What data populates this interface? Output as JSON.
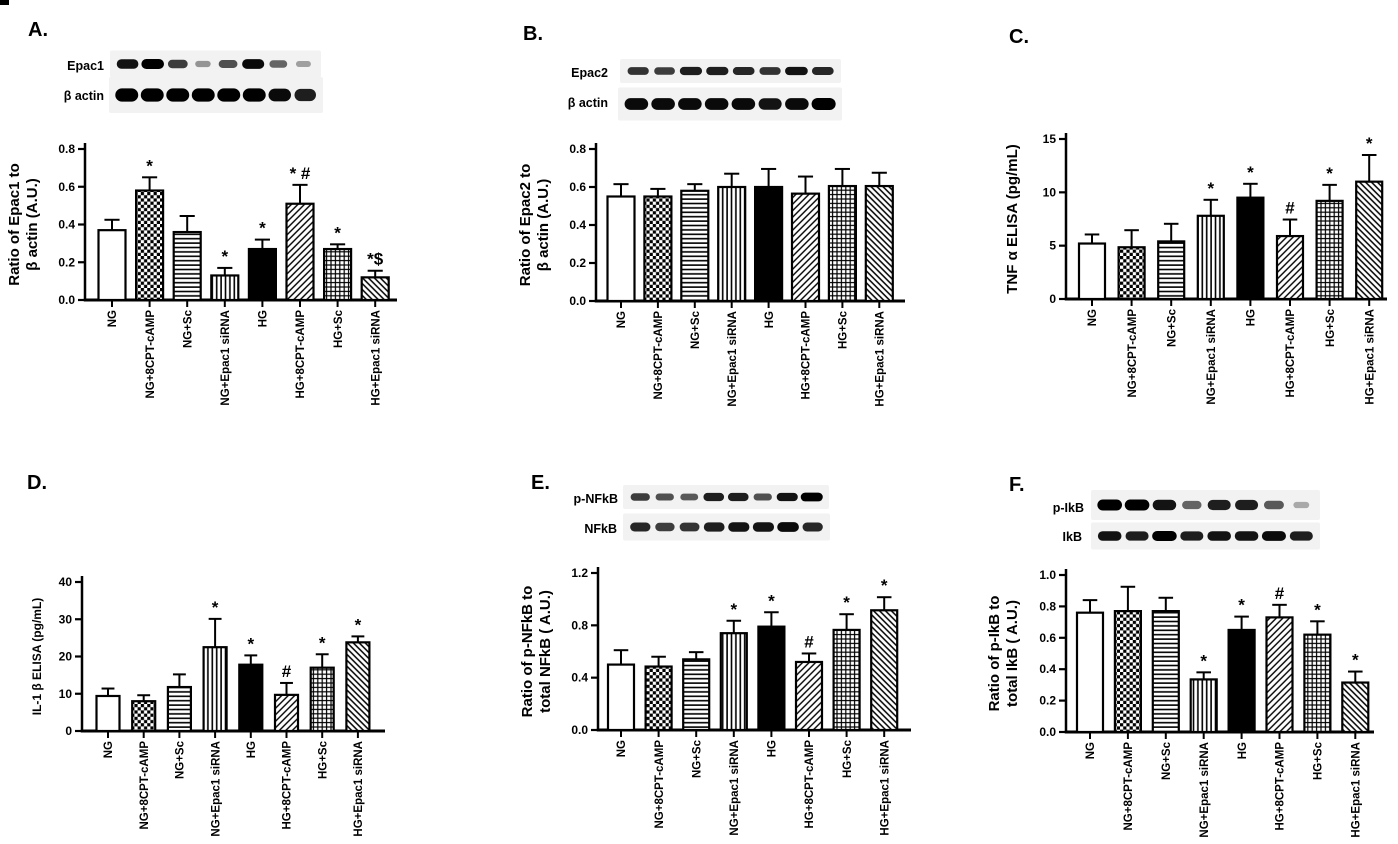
{
  "figure": {
    "colors": {
      "ink": "#000000",
      "background": "#ffffff",
      "blot_backdrop": "#f2f2f2"
    },
    "categories": [
      "NG",
      "NG+8CPT-cAMP",
      "NG+Sc",
      "NG+Epac1 siRNA",
      "HG",
      "HG+8CPT-cAMP",
      "HG+Sc",
      "HG+Epac1 siRNA"
    ],
    "bar_patterns": [
      "open",
      "checkerboard",
      "horizontal-lines",
      "vertical-lines",
      "solid-black",
      "diagonal-back",
      "grid",
      "diagonal-forward"
    ],
    "panels": [
      {
        "label": "A.",
        "blot": {
          "rows": [
            {
              "label": "Epac1",
              "band_intensities": [
                0.9,
                1.0,
                0.7,
                0.25,
                0.6,
                0.95,
                0.5,
                0.2
              ]
            },
            {
              "label": "β actin",
              "band_intensities": [
                1.0,
                1.0,
                1.0,
                1.0,
                1.0,
                1.0,
                0.95,
                0.85
              ]
            }
          ]
        }
      },
      {
        "label": "B.",
        "blot": {
          "rows": [
            {
              "label": "Epac2",
              "band_intensities": [
                0.75,
                0.7,
                0.85,
                0.85,
                0.8,
                0.75,
                0.9,
                0.8
              ]
            },
            {
              "label": "β actin",
              "band_intensities": [
                0.95,
                0.95,
                0.95,
                0.95,
                0.95,
                0.9,
                0.95,
                1.0
              ]
            }
          ]
        }
      },
      {
        "label": "C.",
        "blot": null
      },
      {
        "label": "D.",
        "blot": null
      },
      {
        "label": "E.",
        "blot": {
          "rows": [
            {
              "label": "p-NFkB",
              "band_intensities": [
                0.7,
                0.6,
                0.55,
                0.85,
                0.85,
                0.6,
                0.9,
                1.0
              ]
            },
            {
              "label": "NFkB",
              "band_intensities": [
                0.8,
                0.7,
                0.75,
                0.85,
                0.9,
                0.9,
                0.95,
                0.8
              ]
            }
          ]
        }
      },
      {
        "label": "F.",
        "blot": {
          "rows": [
            {
              "label": "p-IkB",
              "band_intensities": [
                1.0,
                1.0,
                0.9,
                0.5,
                0.85,
                0.85,
                0.55,
                0.15
              ]
            },
            {
              "label": "IkB",
              "band_intensities": [
                0.9,
                0.85,
                1.0,
                0.85,
                0.9,
                0.9,
                0.95,
                0.85
              ]
            }
          ]
        }
      }
    ]
  },
  "chart_data": [
    {
      "panel": "A",
      "type": "bar",
      "ylabel_lines": [
        "Ratio of Epac1 to",
        "β actin  (A.U.)"
      ],
      "ylim": [
        0,
        0.8
      ],
      "ytick_values": [
        0,
        0.2,
        0.4,
        0.6,
        0.8
      ],
      "ytick_labels": [
        "0.0",
        "0.2",
        "0.4",
        "0.6",
        "0.8"
      ],
      "categories": [
        "NG",
        "NG+8CPT-cAMP",
        "NG+Sc",
        "NG+Epac1 siRNA",
        "HG",
        "HG+8CPT-cAMP",
        "HG+Sc",
        "HG+Epac1 siRNA"
      ],
      "values": [
        0.37,
        0.58,
        0.36,
        0.13,
        0.27,
        0.51,
        0.27,
        0.12
      ],
      "errors": [
        0.055,
        0.07,
        0.085,
        0.04,
        0.05,
        0.1,
        0.025,
        0.035
      ],
      "annotations": [
        "",
        "*",
        "",
        "*",
        "*",
        "* #",
        "*",
        "*$"
      ]
    },
    {
      "panel": "B",
      "type": "bar",
      "ylabel_lines": [
        "Ratio of Epac2 to",
        "β actin  (A.U.)"
      ],
      "ylim": [
        0,
        0.8
      ],
      "ytick_values": [
        0,
        0.2,
        0.4,
        0.6,
        0.8
      ],
      "ytick_labels": [
        "0.0",
        "0.2",
        "0.4",
        "0.6",
        "0.8"
      ],
      "categories": [
        "NG",
        "NG+8CPT-cAMP",
        "NG+Sc",
        "NG+Epac1 siRNA",
        "HG",
        "HG+8CPT-cAMP",
        "HG+Sc",
        "HG+Epac1 siRNA"
      ],
      "values": [
        0.55,
        0.55,
        0.58,
        0.6,
        0.6,
        0.565,
        0.605,
        0.605
      ],
      "errors": [
        0.065,
        0.04,
        0.035,
        0.07,
        0.095,
        0.09,
        0.09,
        0.07
      ],
      "annotations": [
        "",
        "",
        "",
        "",
        "",
        "",
        "",
        ""
      ]
    },
    {
      "panel": "C",
      "type": "bar",
      "ylabel_lines": [
        "TNF α ELISA (pg/mL)"
      ],
      "ylim": [
        0,
        15
      ],
      "ytick_values": [
        0,
        5,
        10,
        15
      ],
      "ytick_labels": [
        "0",
        "5",
        "10",
        "15"
      ],
      "categories": [
        "NG",
        "NG+8CPT-cAMP",
        "NG+Sc",
        "NG+Epac1 siRNA",
        "HG",
        "HG+8CPT-cAMP",
        "HG+Sc",
        "HG+Epac1 siRNA"
      ],
      "values": [
        5.2,
        4.85,
        5.4,
        7.8,
        9.5,
        5.9,
        9.2,
        11.0
      ],
      "errors": [
        0.85,
        1.6,
        1.65,
        1.5,
        1.3,
        1.55,
        1.5,
        2.5
      ],
      "annotations": [
        "",
        "",
        "",
        "*",
        "*",
        "#",
        "*",
        "*"
      ]
    },
    {
      "panel": "D",
      "type": "bar",
      "ylabel_lines": [
        "IL-1 β  ELISA (pg/mL)"
      ],
      "ylim": [
        0,
        40
      ],
      "ytick_values": [
        0,
        10,
        20,
        30,
        40
      ],
      "ytick_labels": [
        "0",
        "10",
        "20",
        "30",
        "40"
      ],
      "categories": [
        "NG",
        "NG+8CPT-cAMP",
        "NG+Sc",
        "NG+Epac1 siRNA",
        "HG",
        "HG+8CPT-cAMP",
        "HG+Sc",
        "HG+Epac1 siRNA"
      ],
      "values": [
        9.4,
        8.0,
        11.8,
        22.5,
        17.8,
        9.7,
        17.0,
        23.8
      ],
      "errors": [
        2.0,
        1.6,
        3.4,
        7.6,
        2.5,
        3.2,
        3.6,
        1.6
      ],
      "annotations": [
        "",
        "",
        "",
        "*",
        "*",
        "#",
        "*",
        "*"
      ]
    },
    {
      "panel": "E",
      "type": "bar",
      "ylabel_lines": [
        "Ratio of p-NFkB to",
        "total NFkB ( A.U.)"
      ],
      "ylim": [
        0,
        1.2
      ],
      "ytick_values": [
        0,
        0.4,
        0.8,
        1.2
      ],
      "ytick_labels": [
        "0.0",
        "0.4",
        "0.8",
        "1.2"
      ],
      "categories": [
        "NG",
        "NG+8CPT-cAMP",
        "NG+Sc",
        "NG+Epac1 siRNA",
        "HG",
        "HG+8CPT-cAMP",
        "HG+Sc",
        "HG+Epac1 siRNA"
      ],
      "values": [
        0.5,
        0.485,
        0.54,
        0.74,
        0.79,
        0.52,
        0.765,
        0.915
      ],
      "errors": [
        0.11,
        0.075,
        0.055,
        0.095,
        0.11,
        0.065,
        0.12,
        0.1
      ],
      "annotations": [
        "",
        "",
        "",
        "*",
        "*",
        "#",
        "*",
        "*"
      ]
    },
    {
      "panel": "F",
      "type": "bar",
      "ylabel_lines": [
        "Ratio of p-IkB to",
        "total IkB ( A.U.)"
      ],
      "ylim": [
        0,
        1.0
      ],
      "ytick_values": [
        0,
        0.2,
        0.4,
        0.6,
        0.8,
        1.0
      ],
      "ytick_labels": [
        "0.0",
        "0.2",
        "0.4",
        "0.6",
        "0.8",
        "1.0"
      ],
      "categories": [
        "NG",
        "NG+8CPT-cAMP",
        "NG+Sc",
        "NG+Epac1 siRNA",
        "HG",
        "HG+8CPT-cAMP",
        "HG+Sc",
        "HG+Epac1 siRNA"
      ],
      "values": [
        0.76,
        0.77,
        0.77,
        0.335,
        0.65,
        0.73,
        0.62,
        0.315
      ],
      "errors": [
        0.08,
        0.155,
        0.085,
        0.045,
        0.085,
        0.08,
        0.085,
        0.07
      ],
      "annotations": [
        "",
        "",
        "",
        "*",
        "*",
        "#",
        "*",
        "*"
      ]
    }
  ]
}
